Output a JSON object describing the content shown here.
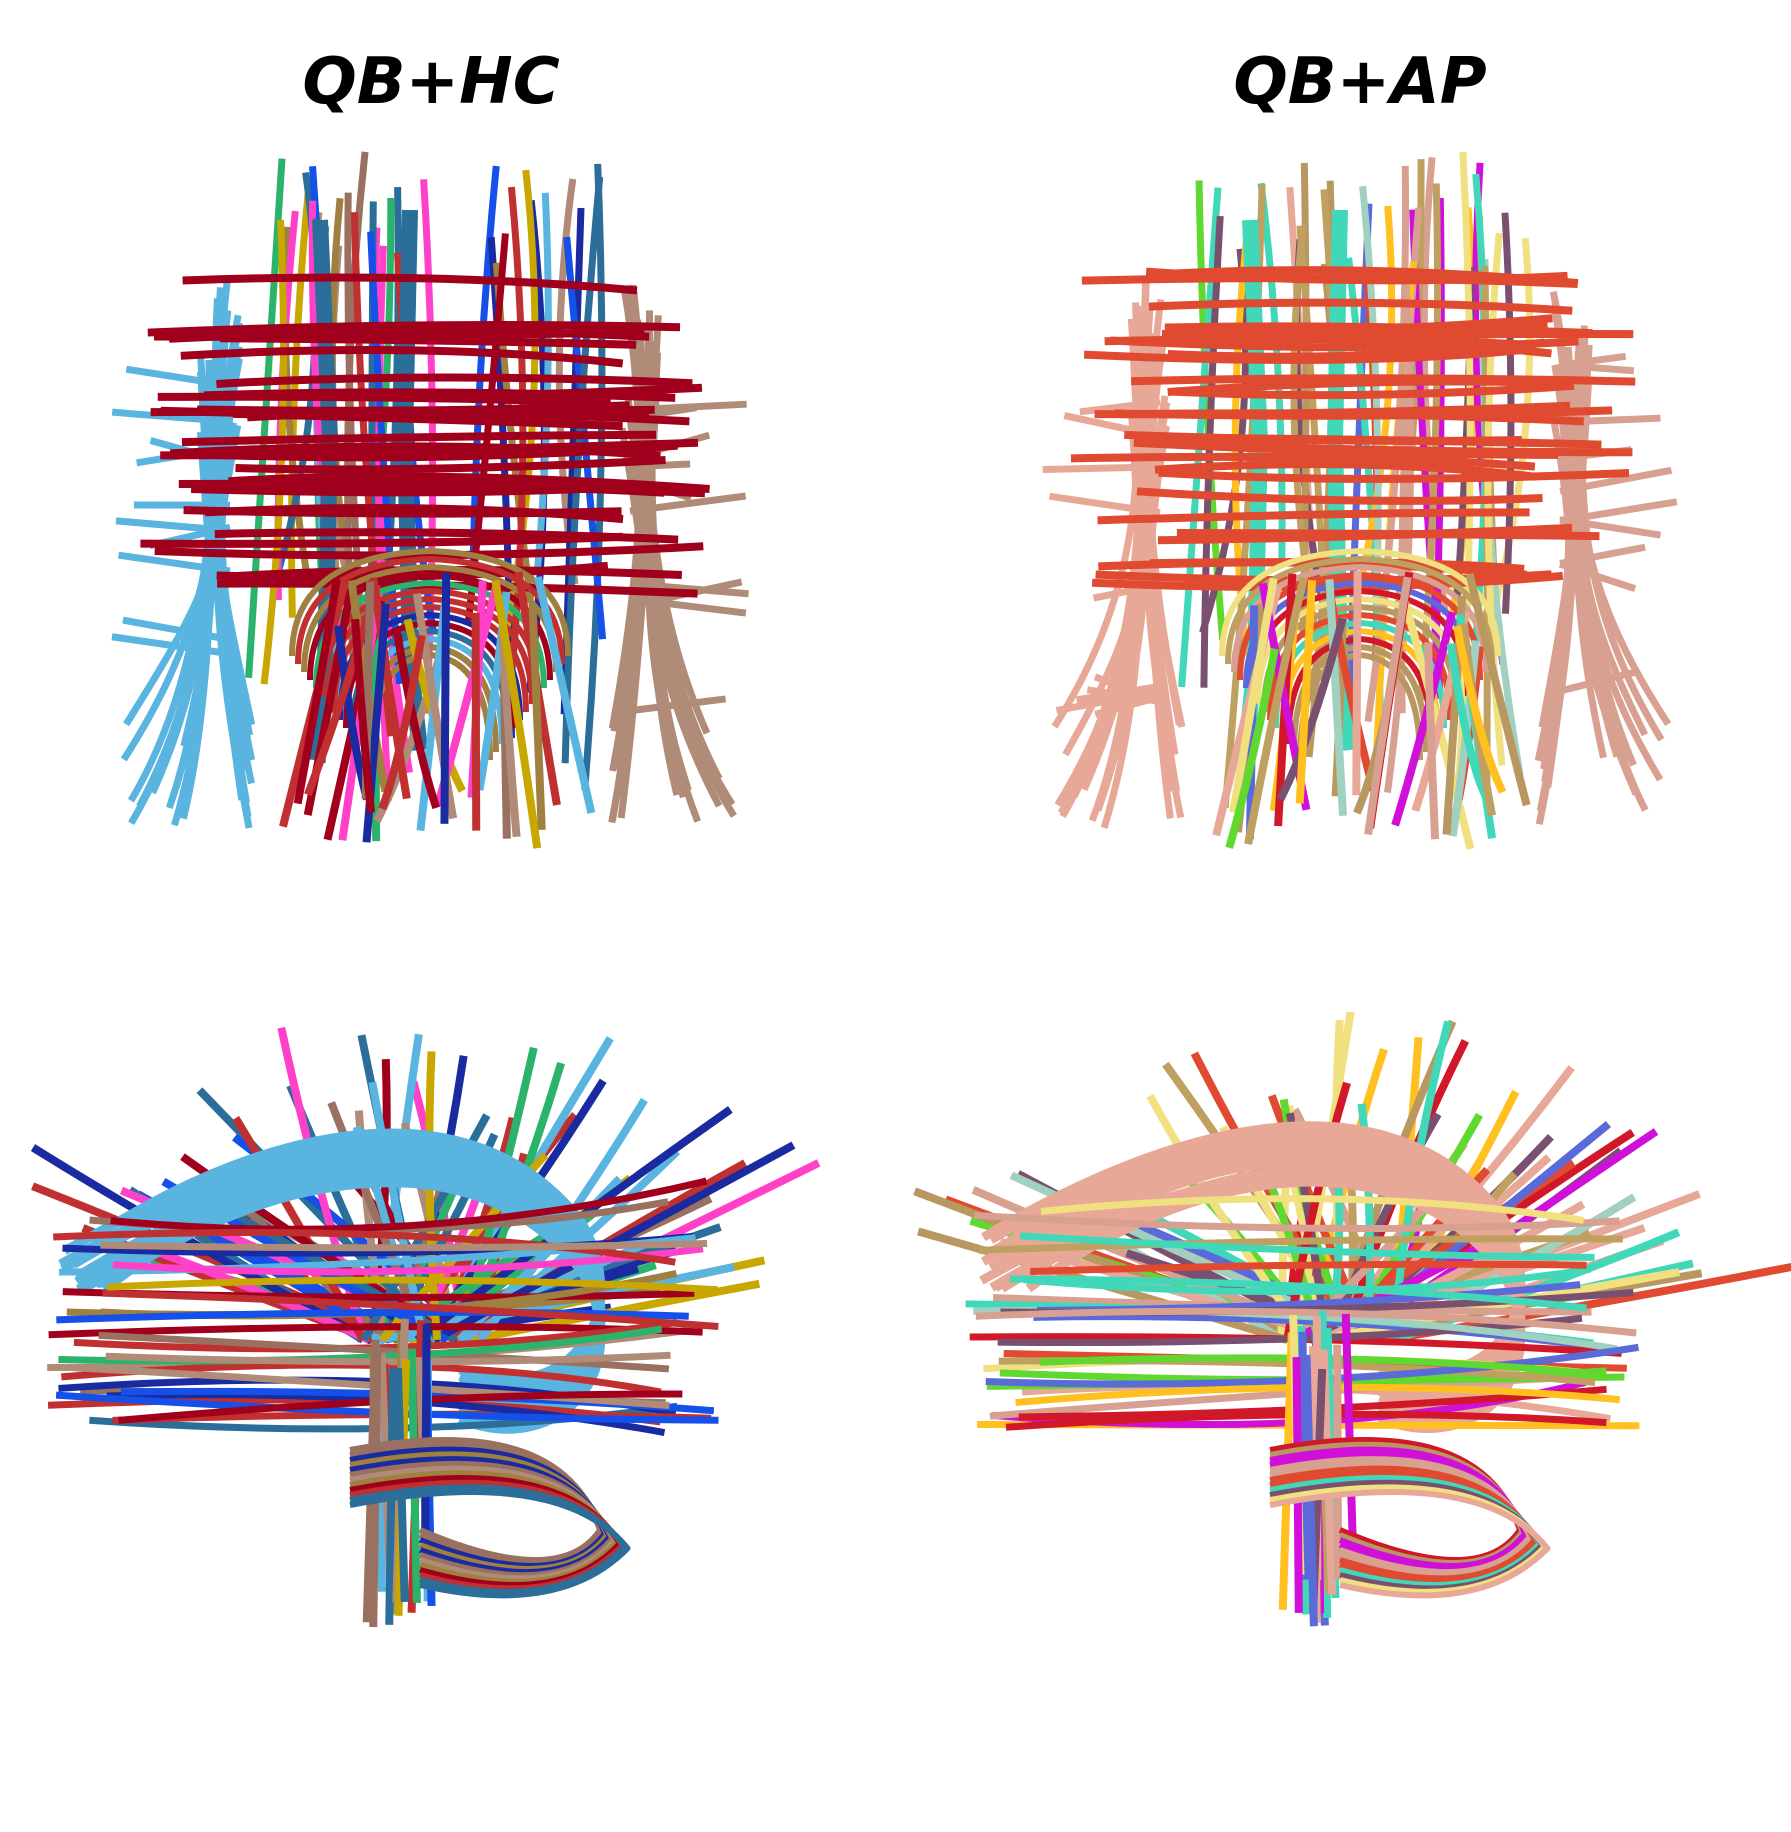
{
  "titles": {
    "left": "QB+HC",
    "right": "QB+AP"
  },
  "palettes": {
    "hc": [
      "#a0001c",
      "#5ab4e0",
      "#b08c78",
      "#2a6e99",
      "#2bb36b",
      "#c8a800",
      "#1a2aa0",
      "#ff40c8",
      "#9a7060",
      "#c03030",
      "#1550e8",
      "#a08040"
    ],
    "ap": [
      "#e04a30",
      "#e8a898",
      "#d8a090",
      "#40d8b8",
      "#5a6ad8",
      "#d010d8",
      "#ffc020",
      "#a0d0c0",
      "#f0e080",
      "#60d830",
      "#b89860",
      "#7a5070",
      "#d01828",
      "#c0a060"
    ]
  },
  "panels": [
    {
      "id": "panel-tl",
      "view": "axial",
      "palette": "hc"
    },
    {
      "id": "panel-tr",
      "view": "axial",
      "palette": "ap"
    },
    {
      "id": "panel-bl",
      "view": "sagittal",
      "palette": "hc"
    },
    {
      "id": "panel-br",
      "view": "sagittal",
      "palette": "ap"
    }
  ]
}
